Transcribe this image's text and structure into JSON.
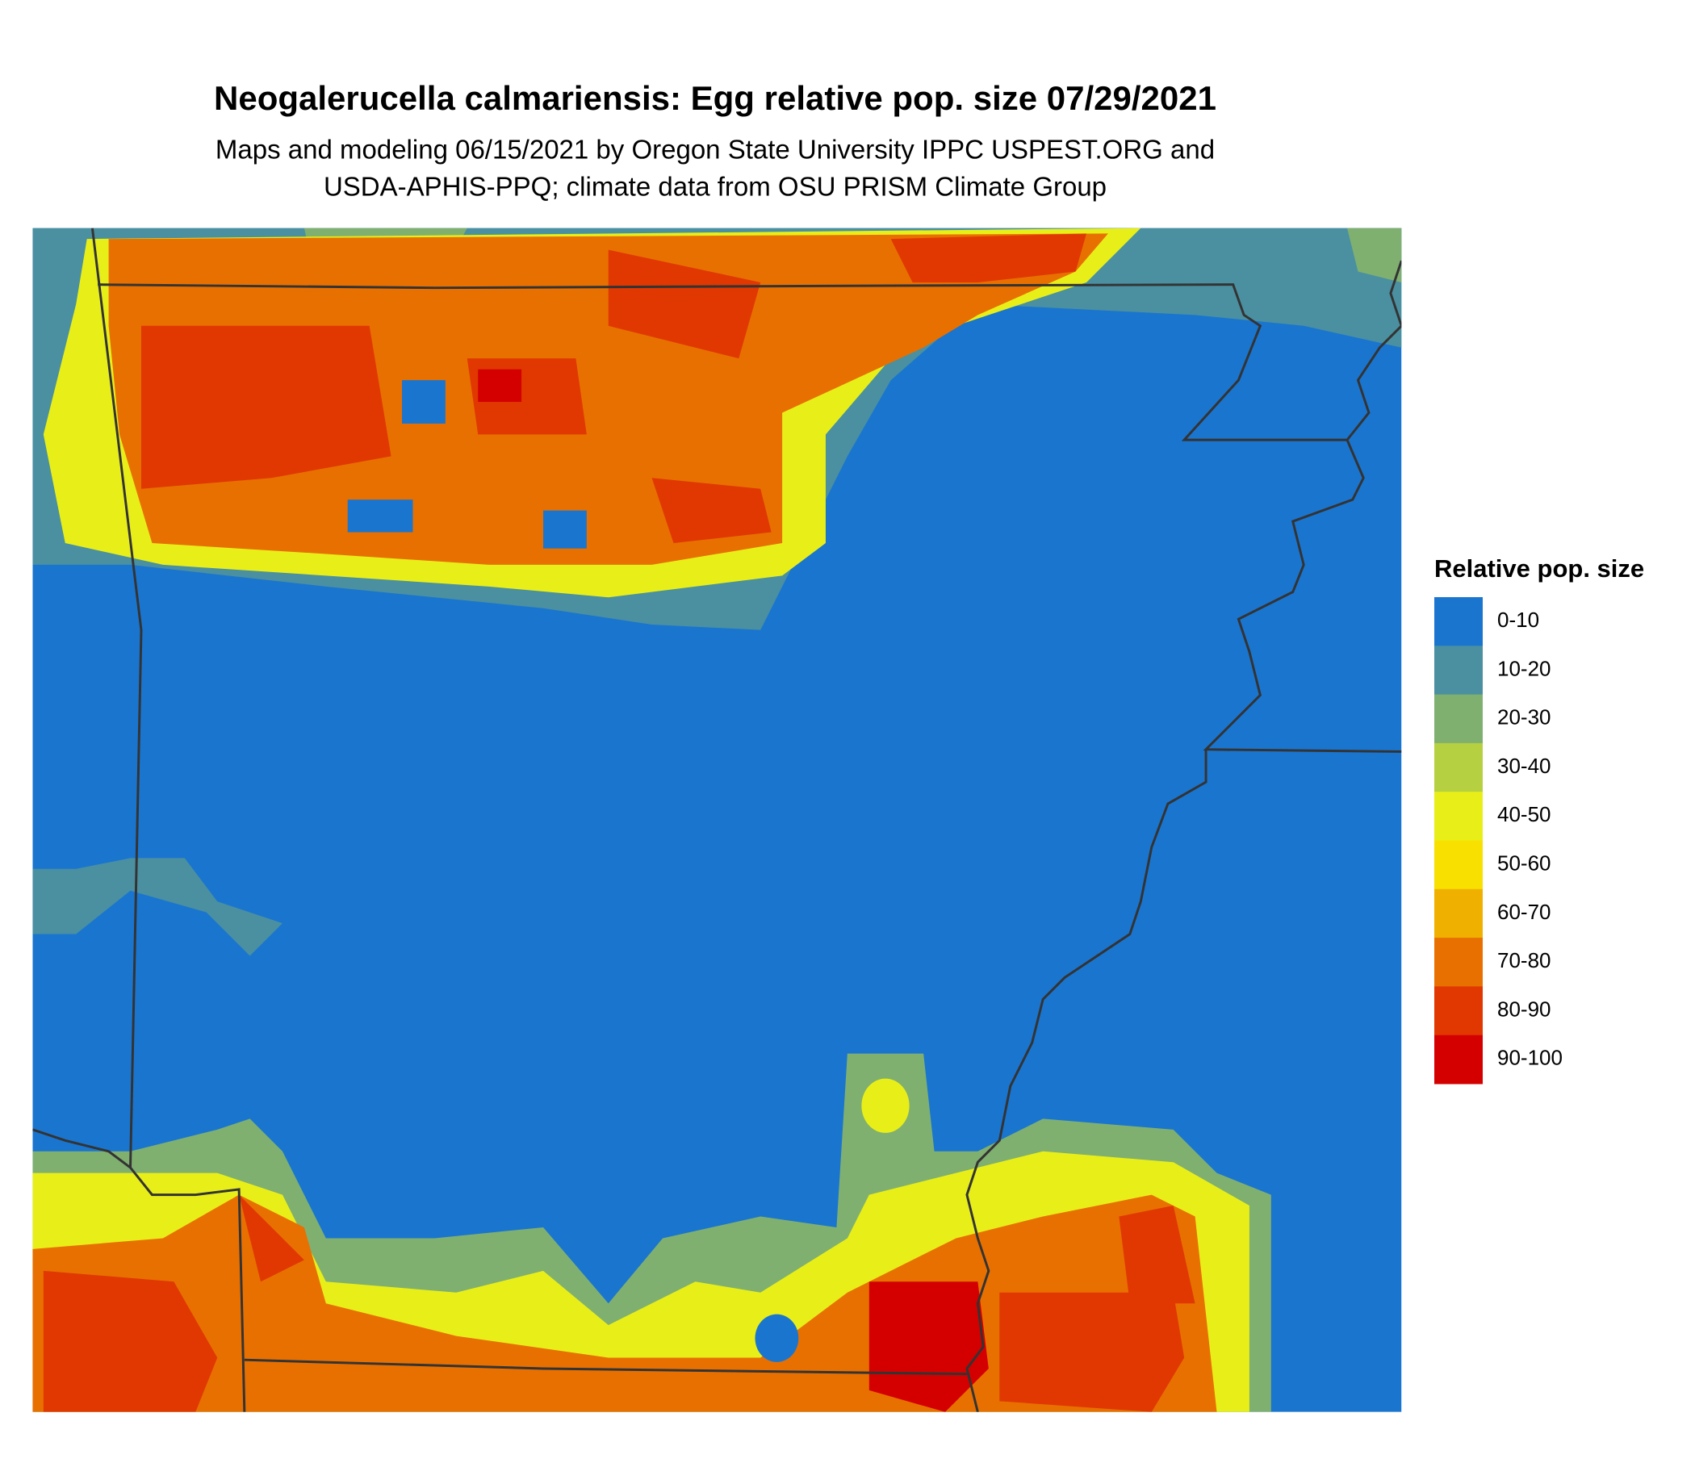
{
  "header": {
    "title": "Neogalerucella calmariensis: Egg relative pop. size 07/29/2021",
    "subtitle": [
      "Maps and modeling 06/15/2021 by Oregon State University IPPC USPEST.ORG and",
      "USDA-APHIS-PPQ; climate data from OSU PRISM Climate Group"
    ]
  },
  "legend": {
    "title": "Relative pop. size",
    "items": [
      {
        "label": "0-10",
        "color": "#1a75cf"
      },
      {
        "label": "10-20",
        "color": "#4a90a0"
      },
      {
        "label": "20-30",
        "color": "#80b070"
      },
      {
        "label": "30-40",
        "color": "#b5d040"
      },
      {
        "label": "40-50",
        "color": "#e8ef18"
      },
      {
        "label": "50-60",
        "color": "#f8e000"
      },
      {
        "label": "60-70",
        "color": "#f0b000"
      },
      {
        "label": "70-80",
        "color": "#e87000"
      },
      {
        "label": "80-90",
        "color": "#e03800"
      },
      {
        "label": "90-100",
        "color": "#d40000"
      }
    ]
  }
}
